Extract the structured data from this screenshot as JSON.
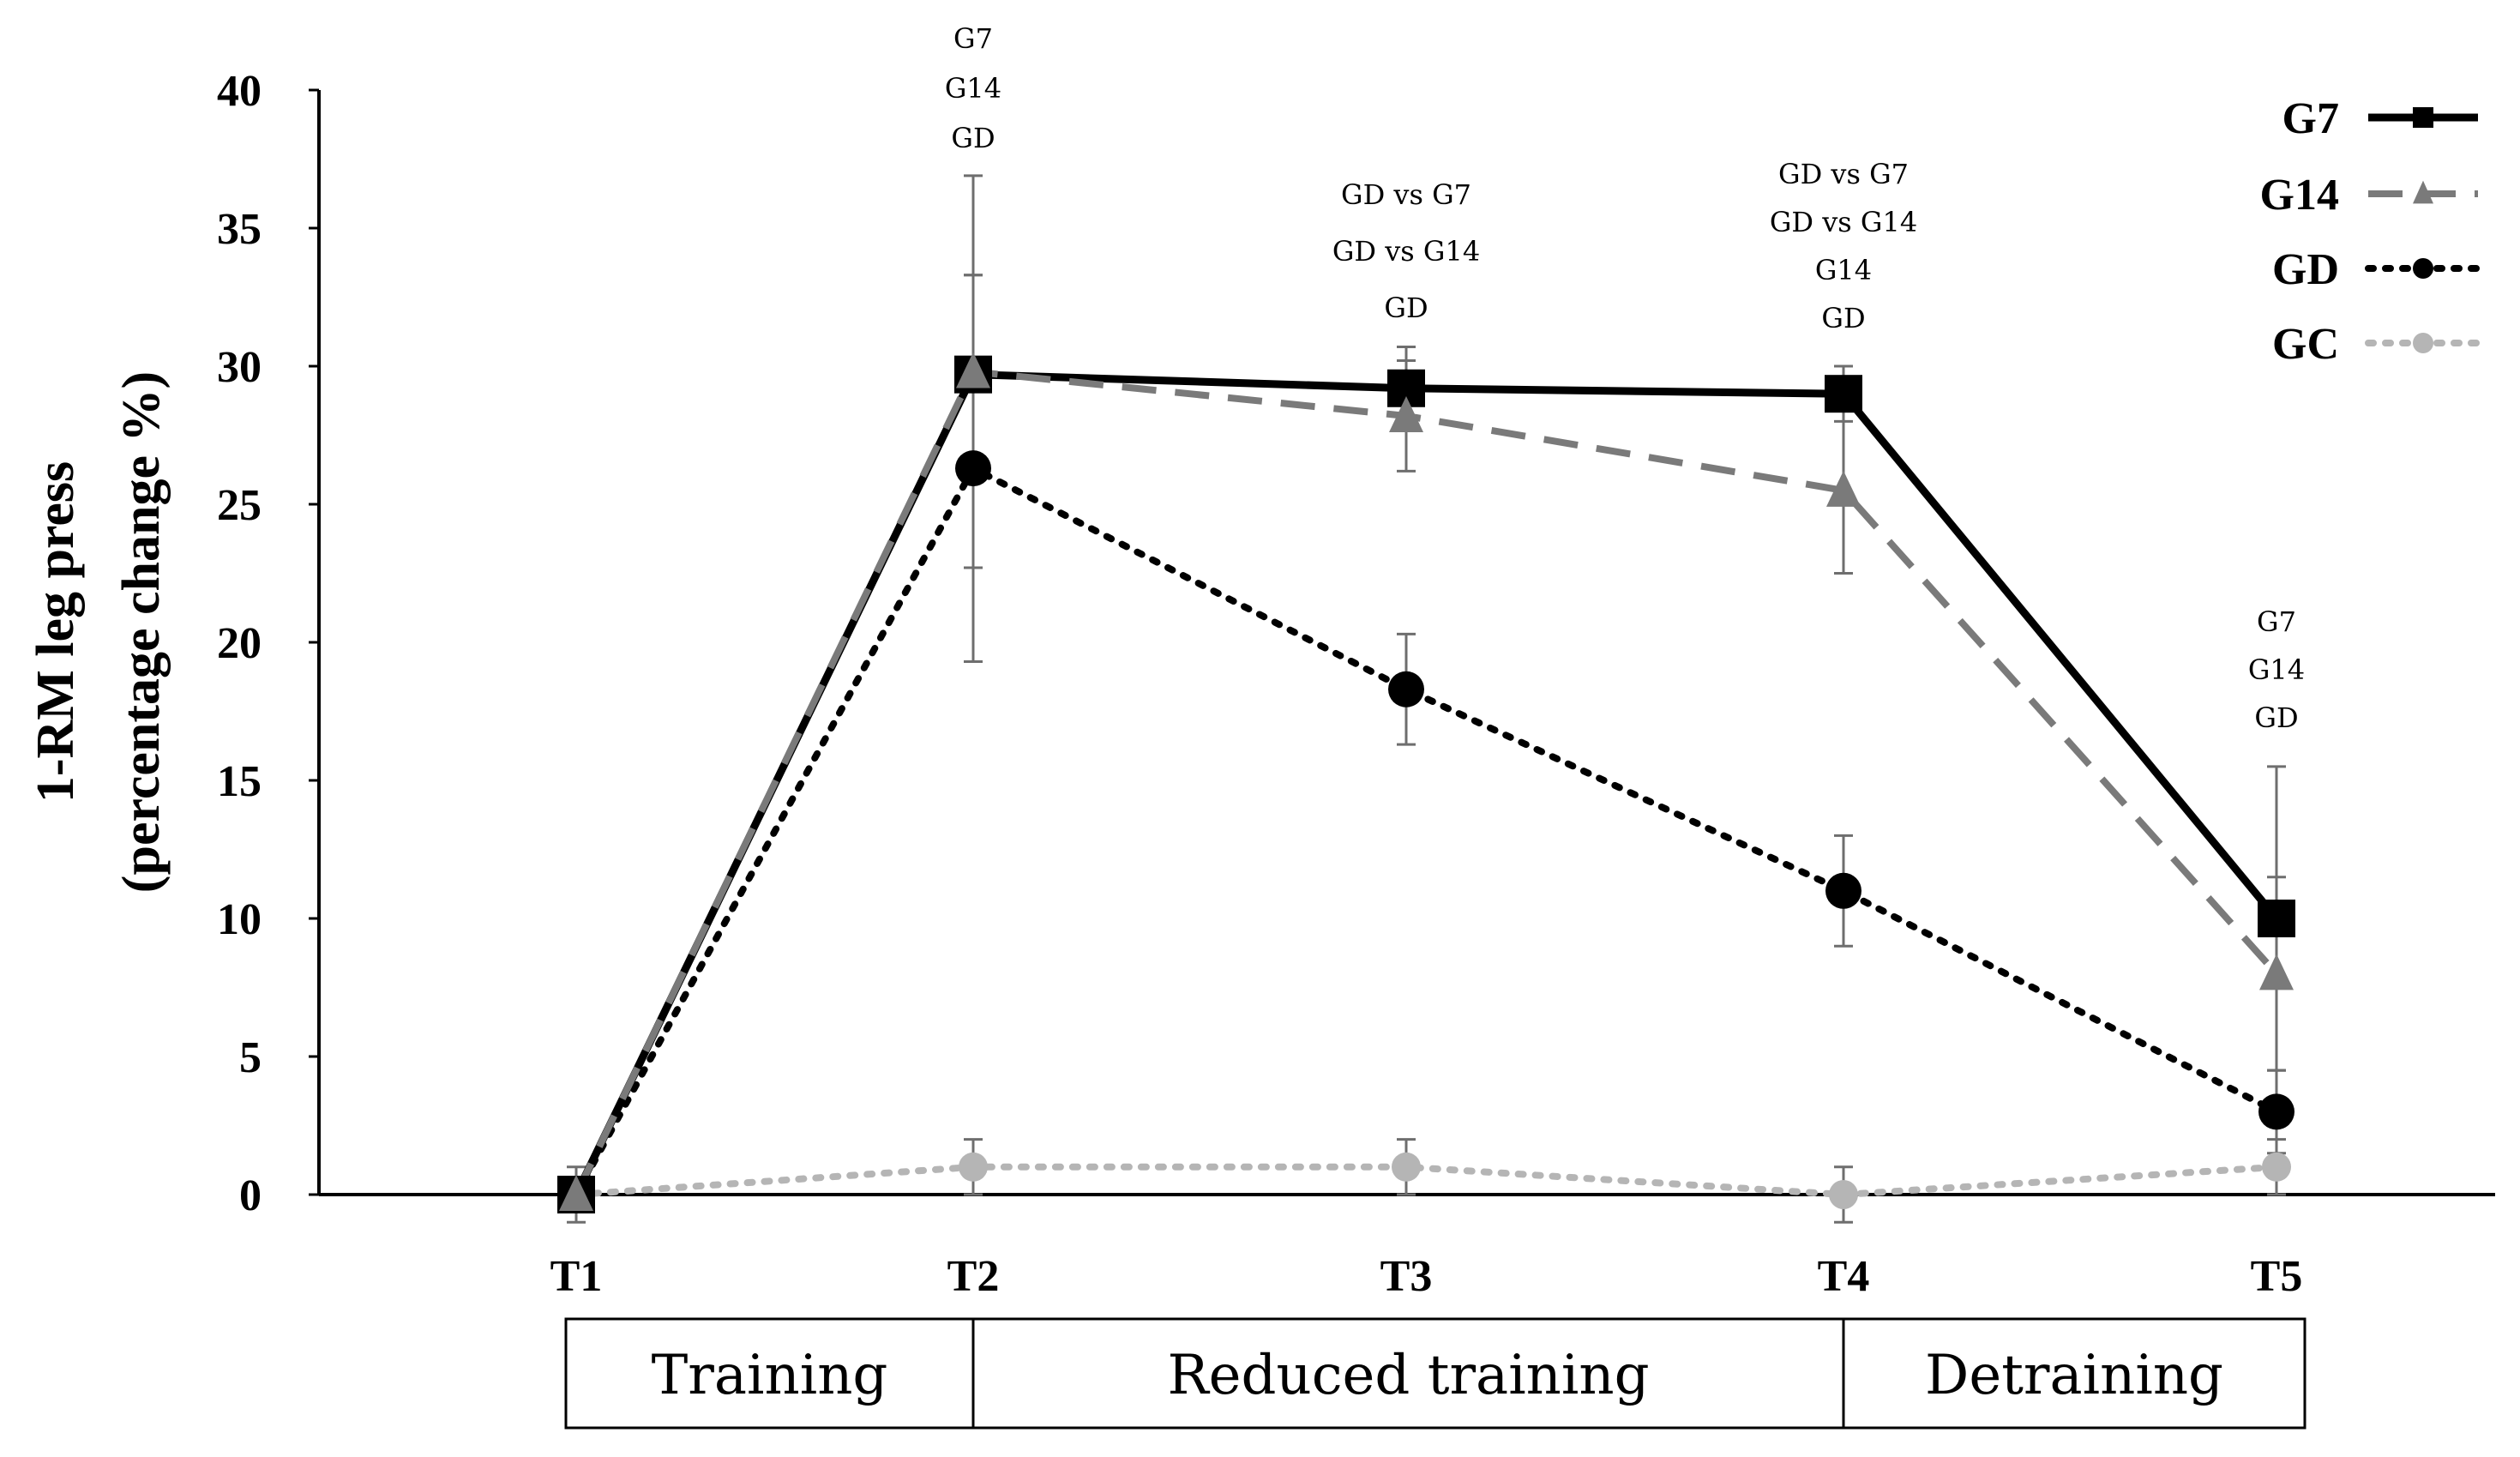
{
  "chart_data": {
    "type": "line",
    "title": "",
    "ylabel_line1": "1-RM leg press",
    "ylabel_line2": "(percentage change %)",
    "xlabel": "",
    "categories": [
      "T1",
      "T2",
      "T3",
      "T4",
      "T5"
    ],
    "ylim": [
      0,
      40
    ],
    "yticks": [
      0,
      5,
      10,
      15,
      20,
      25,
      30,
      35,
      40
    ],
    "series": [
      {
        "name": "G7",
        "style": "solid",
        "marker": "square",
        "color": "#000000",
        "values": [
          0,
          29.7,
          29.2,
          29.0,
          10.0
        ],
        "errors": [
          0,
          3.6,
          1.5,
          1.0,
          5.5
        ]
      },
      {
        "name": "G14",
        "style": "dashed",
        "marker": "triangle",
        "color": "#7a7a7a",
        "values": [
          0,
          29.8,
          28.2,
          25.5,
          8.0
        ],
        "errors": [
          0,
          7.1,
          2.0,
          3.0,
          3.5
        ]
      },
      {
        "name": "GD",
        "style": "dotted",
        "marker": "circle",
        "color": "#000000",
        "values": [
          0,
          26.3,
          18.3,
          11.0,
          3.0
        ],
        "errors": [
          0,
          7.0,
          2.0,
          2.0,
          1.5
        ]
      },
      {
        "name": "GC",
        "style": "dotted",
        "marker": "circle",
        "color": "#b5b5b5",
        "values": [
          0,
          1.0,
          1.0,
          0,
          1.0
        ],
        "errors": [
          1.0,
          1.0,
          1.0,
          1.0,
          1.0
        ]
      }
    ],
    "annotations": [
      {
        "category": "T2",
        "lines": [
          "G7",
          "G14",
          "GD"
        ]
      },
      {
        "category": "T3",
        "lines": [
          "GD vs G7",
          "GD vs G14",
          "GD"
        ]
      },
      {
        "category": "T4",
        "lines": [
          "GD vs G7",
          "GD vs G14",
          "G14",
          "GD"
        ]
      },
      {
        "category": "T5",
        "lines": [
          "G7",
          "G14",
          "GD"
        ]
      }
    ],
    "phases": [
      {
        "label": "Training",
        "from": "T1",
        "to": "T2"
      },
      {
        "label": "Reduced training",
        "from": "T2",
        "to": "T4"
      },
      {
        "label": "Detraining",
        "from": "T4",
        "to": "T5"
      }
    ],
    "legend_position": "top-right"
  }
}
